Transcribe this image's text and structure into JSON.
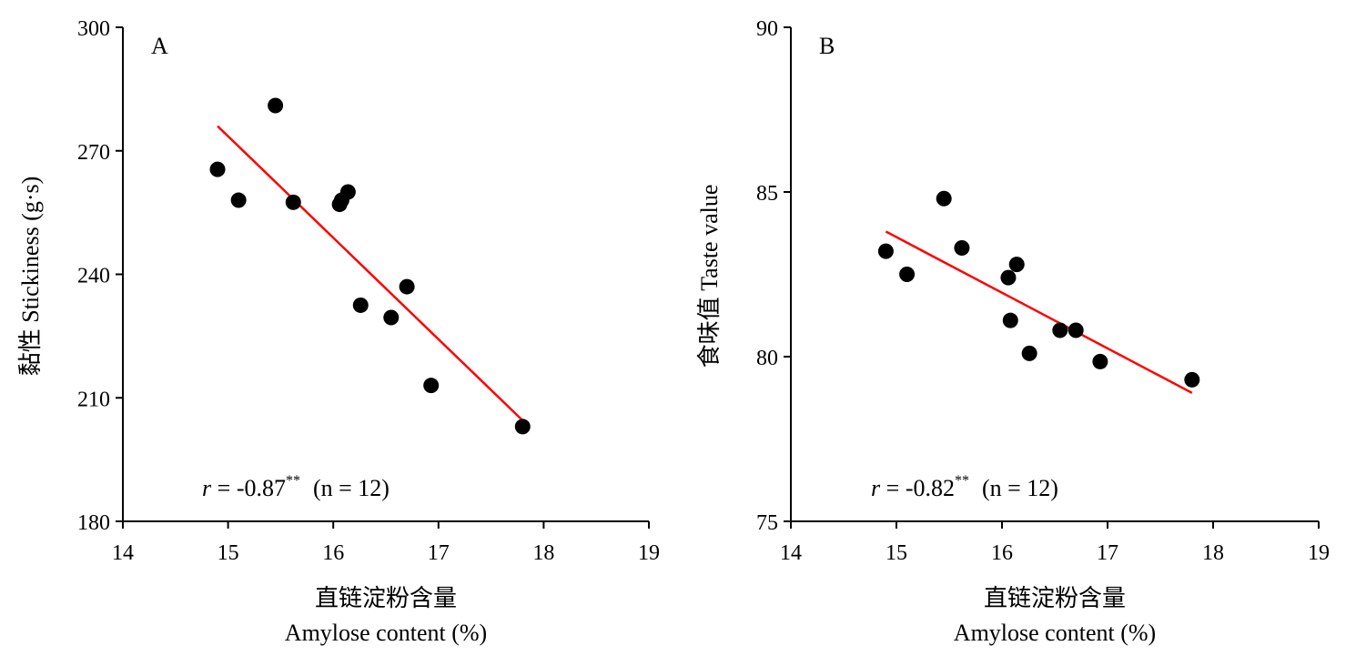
{
  "chart_data": [
    {
      "type": "scatter",
      "panel_label": "A",
      "xlabel_cn": "直链淀粉含量",
      "xlabel_en": "Amylose content (%)",
      "ylabel": "黏性 Stickiness (g·s)",
      "xlim": [
        14,
        19
      ],
      "ylim": [
        180,
        300
      ],
      "xticks": [
        "14",
        "15",
        "16",
        "17",
        "18",
        "19"
      ],
      "yticks": [
        "180",
        "210",
        "240",
        "270",
        "300"
      ],
      "points": [
        {
          "x": 14.9,
          "y": 265.5
        },
        {
          "x": 15.1,
          "y": 258
        },
        {
          "x": 15.45,
          "y": 281
        },
        {
          "x": 15.62,
          "y": 257.5
        },
        {
          "x": 16.06,
          "y": 257
        },
        {
          "x": 16.08,
          "y": 258
        },
        {
          "x": 16.14,
          "y": 260
        },
        {
          "x": 16.26,
          "y": 232.5
        },
        {
          "x": 16.55,
          "y": 229.5
        },
        {
          "x": 16.7,
          "y": 237
        },
        {
          "x": 16.93,
          "y": 213
        },
        {
          "x": 17.8,
          "y": 203
        }
      ],
      "trendline": {
        "x": [
          14.9,
          17.8
        ],
        "y": [
          276,
          204.5
        ]
      },
      "trend_color": "#ff0000",
      "stat": {
        "r": "r",
        "eq": " = -0.87",
        "sup": "**",
        "n": "(n = 12)"
      },
      "grid": false
    },
    {
      "type": "scatter",
      "panel_label": "B",
      "xlabel_cn": "直链淀粉含量",
      "xlabel_en": "Amylose content (%)",
      "ylabel": "食味值 Taste value",
      "xlim": [
        14,
        19
      ],
      "ylim": [
        75,
        90
      ],
      "xticks": [
        "14",
        "15",
        "16",
        "17",
        "18",
        "19"
      ],
      "yticks": [
        "75",
        "80",
        "85",
        "90"
      ],
      "points": [
        {
          "x": 14.9,
          "y": 83.2
        },
        {
          "x": 15.1,
          "y": 82.5
        },
        {
          "x": 15.45,
          "y": 84.8
        },
        {
          "x": 15.62,
          "y": 83.3
        },
        {
          "x": 16.06,
          "y": 82.4
        },
        {
          "x": 16.08,
          "y": 81.1
        },
        {
          "x": 16.14,
          "y": 82.8
        },
        {
          "x": 16.26,
          "y": 80.1
        },
        {
          "x": 16.55,
          "y": 80.8
        },
        {
          "x": 16.7,
          "y": 80.8
        },
        {
          "x": 16.93,
          "y": 79.85
        },
        {
          "x": 17.8,
          "y": 79.3
        }
      ],
      "trendline": {
        "x": [
          14.9,
          17.8
        ],
        "y": [
          83.8,
          78.9
        ]
      },
      "trend_color": "#ff0000",
      "stat": {
        "r": "r",
        "eq": " = -0.82",
        "sup": "**",
        "n": "(n = 12)"
      },
      "grid": false
    }
  ]
}
